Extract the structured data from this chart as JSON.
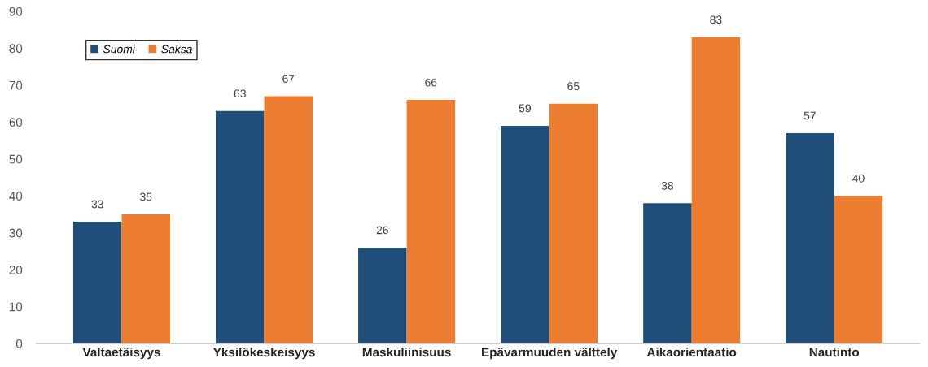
{
  "chart_data": {
    "type": "bar",
    "categories": [
      "Valtaetäisyys",
      "Yksilökeskeisyys",
      "Maskuliinisuus",
      "Epävarmuuden välttely",
      "Aikaorientaatio",
      "Nautinto"
    ],
    "series": [
      {
        "name": "Suomi",
        "color": "#1f4e79",
        "values": [
          33,
          63,
          26,
          59,
          38,
          57
        ]
      },
      {
        "name": "Saksa",
        "color": "#ed7d31",
        "values": [
          35,
          67,
          66,
          65,
          83,
          40
        ]
      }
    ],
    "ylim": [
      0,
      90
    ],
    "yticks": [
      0,
      10,
      20,
      30,
      40,
      50,
      60,
      70,
      80,
      90
    ],
    "grid": false,
    "legend": "top left",
    "data_labels": true
  }
}
